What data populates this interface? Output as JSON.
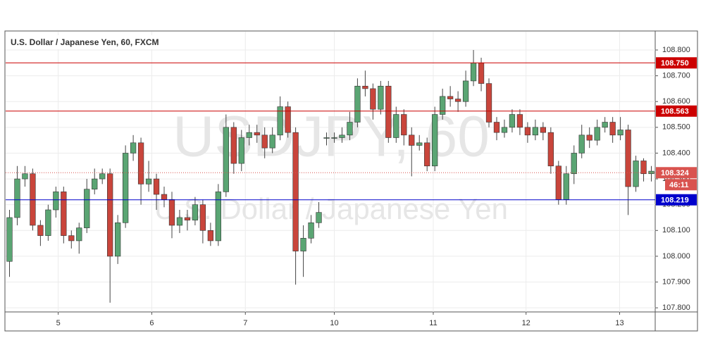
{
  "chart_data": {
    "type": "candlestick",
    "title": "U.S. Dollar / Japanese Yen, 60, FXCM",
    "watermark": "USDJPY, 60",
    "watermark_subtitle": "U.S. Dollar / Japanese Yen",
    "up_color": "#5aa573",
    "down_color": "#c9453b",
    "series": {
      "open": [
        107.98,
        108.15,
        108.3,
        108.32,
        108.12,
        108.08,
        108.18,
        108.25,
        108.08,
        108.06,
        108.11,
        108.26,
        108.3,
        108.32,
        108.0,
        108.13,
        108.4,
        108.44,
        108.28,
        108.3,
        108.24,
        108.22,
        108.12,
        108.15,
        108.14,
        108.2,
        108.1,
        108.06,
        108.25,
        108.5,
        108.36,
        108.46,
        108.48,
        108.47,
        108.42,
        108.47,
        108.58,
        108.48,
        108.02,
        108.07,
        108.13,
        108.46,
        108.46,
        108.46,
        108.47,
        108.52,
        108.66,
        108.65,
        108.57,
        108.66,
        108.46,
        108.55,
        108.47,
        108.43,
        108.44,
        108.35,
        108.55,
        108.62,
        108.61,
        108.6,
        108.68,
        108.75,
        108.67,
        108.52,
        108.48,
        108.5,
        108.55,
        108.5,
        108.47,
        108.5,
        108.48,
        108.35,
        108.22,
        108.32,
        108.4,
        108.47,
        108.45,
        108.5,
        108.52,
        108.47,
        108.49,
        108.27,
        108.37,
        108.32
      ],
      "high": [
        108.18,
        108.35,
        108.35,
        108.34,
        108.14,
        108.2,
        108.27,
        108.27,
        108.1,
        108.13,
        108.3,
        108.34,
        108.34,
        108.34,
        108.16,
        108.43,
        108.47,
        108.46,
        108.37,
        108.32,
        108.27,
        108.25,
        108.18,
        108.18,
        108.23,
        108.22,
        108.13,
        108.28,
        108.55,
        108.52,
        108.49,
        108.51,
        108.51,
        108.5,
        108.5,
        108.62,
        108.6,
        108.5,
        108.12,
        108.16,
        108.21,
        108.48,
        108.48,
        108.5,
        108.56,
        108.69,
        108.72,
        108.67,
        108.68,
        108.68,
        108.58,
        108.57,
        108.5,
        108.47,
        108.46,
        108.58,
        108.65,
        108.66,
        108.64,
        108.72,
        108.8,
        108.77,
        108.69,
        108.54,
        108.53,
        108.57,
        108.57,
        108.52,
        108.53,
        108.52,
        108.5,
        108.37,
        108.35,
        108.43,
        108.51,
        108.5,
        108.53,
        108.54,
        108.54,
        108.54,
        108.51,
        108.39,
        108.38,
        108.35
      ],
      "low": [
        107.92,
        108.12,
        108.27,
        108.1,
        108.04,
        108.06,
        108.15,
        108.05,
        108.03,
        108.01,
        108.09,
        108.24,
        108.28,
        107.82,
        107.97,
        108.11,
        108.37,
        108.2,
        108.25,
        108.18,
        108.19,
        108.07,
        108.09,
        108.1,
        108.12,
        108.05,
        108.04,
        108.04,
        108.23,
        108.32,
        108.33,
        108.43,
        108.44,
        108.38,
        108.4,
        108.45,
        108.46,
        107.89,
        107.92,
        108.05,
        108.11,
        108.43,
        108.44,
        108.44,
        108.45,
        108.5,
        108.62,
        108.53,
        108.55,
        108.44,
        108.44,
        108.43,
        108.31,
        108.41,
        108.33,
        108.33,
        108.53,
        108.58,
        108.56,
        108.58,
        108.66,
        108.64,
        108.5,
        108.45,
        108.46,
        108.48,
        108.47,
        108.44,
        108.45,
        108.45,
        108.32,
        108.2,
        108.2,
        108.28,
        108.38,
        108.42,
        108.43,
        108.48,
        108.44,
        108.45,
        108.16,
        108.25,
        108.29,
        108.29
      ],
      "close": [
        108.15,
        108.3,
        108.32,
        108.12,
        108.08,
        108.18,
        108.25,
        108.08,
        108.06,
        108.11,
        108.26,
        108.3,
        108.32,
        108.0,
        108.13,
        108.4,
        108.44,
        108.28,
        108.3,
        108.24,
        108.22,
        108.12,
        108.15,
        108.14,
        108.2,
        108.1,
        108.06,
        108.25,
        108.5,
        108.36,
        108.46,
        108.48,
        108.47,
        108.42,
        108.47,
        108.58,
        108.48,
        108.02,
        108.07,
        108.13,
        108.17,
        108.46,
        108.46,
        108.47,
        108.52,
        108.66,
        108.65,
        108.57,
        108.66,
        108.46,
        108.55,
        108.47,
        108.43,
        108.44,
        108.35,
        108.55,
        108.62,
        108.61,
        108.6,
        108.68,
        108.75,
        108.67,
        108.52,
        108.48,
        108.5,
        108.55,
        108.5,
        108.47,
        108.5,
        108.48,
        108.35,
        108.22,
        108.32,
        108.4,
        108.47,
        108.45,
        108.5,
        108.52,
        108.47,
        108.49,
        108.27,
        108.37,
        108.32,
        108.33
      ]
    },
    "xlim": [
      0,
      84
    ],
    "xticks": [
      {
        "value": 6.8,
        "label": "5"
      },
      {
        "value": 18.9,
        "label": "6"
      },
      {
        "value": 31.0,
        "label": "7"
      },
      {
        "value": 42.5,
        "label": "10"
      },
      {
        "value": 55.3,
        "label": "11"
      },
      {
        "value": 67.3,
        "label": "12"
      },
      {
        "value": 79.4,
        "label": "13"
      }
    ],
    "ylim": [
      107.784,
      108.871
    ],
    "yticks": [
      {
        "value": 107.8,
        "label": "107.800"
      },
      {
        "value": 107.9,
        "label": "107.900"
      },
      {
        "value": 108.0,
        "label": "108.000"
      },
      {
        "value": 108.1,
        "label": "108.100"
      },
      {
        "value": 108.2,
        "label": "108.200"
      },
      {
        "value": 108.3,
        "label": "108.300"
      },
      {
        "value": 108.4,
        "label": "108.400"
      },
      {
        "value": 108.5,
        "label": "108.500"
      },
      {
        "value": 108.6,
        "label": "108.600"
      },
      {
        "value": 108.7,
        "label": "108.700"
      },
      {
        "value": 108.8,
        "label": "108.800"
      }
    ],
    "grid": true,
    "levels": [
      {
        "price": {
          "value": 108.75,
          "label": "108.750"
        },
        "color": "#cc0000",
        "line_style": "solid"
      },
      {
        "price": {
          "value": 108.563,
          "label": "108.563"
        },
        "color": "#cc0000",
        "line_style": "solid"
      },
      {
        "price": {
          "value": 108.324,
          "label": "108.324"
        },
        "color": "#d9534f",
        "line_style": "dotted",
        "countdown": "46:11"
      },
      {
        "price": {
          "value": 108.219,
          "label": "108.219"
        },
        "color": "#0000cc",
        "line_style": "solid"
      }
    ]
  }
}
